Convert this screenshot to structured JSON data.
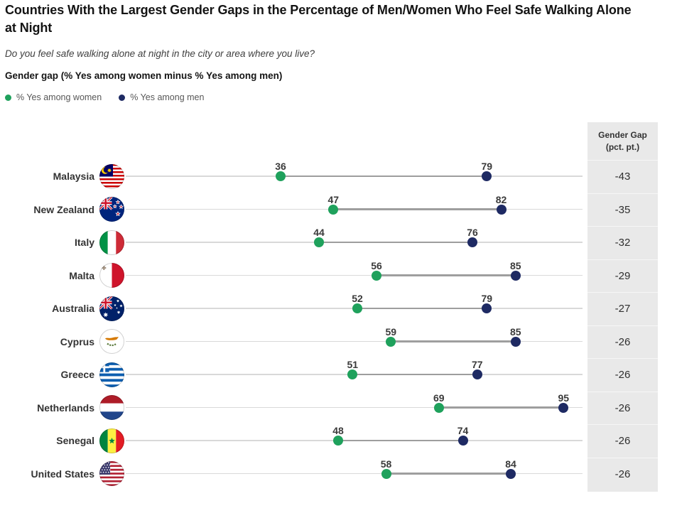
{
  "header": {
    "title": "Countries With the Largest Gender Gaps in the Percentage of Men/Women Who Feel Safe Walking Alone at Night",
    "question": "Do you feel safe walking alone at night in the city or area where you live?",
    "measure": "Gender gap (% Yes among women minus % Yes among men)"
  },
  "legend": {
    "women_label": "% Yes among women",
    "men_label": "% Yes among men"
  },
  "gap_column": {
    "header_line1": "Gender Gap",
    "header_line2": "(pct. pt.)"
  },
  "colors": {
    "women_dot": "#1fa15c",
    "men_dot": "#1e2a63",
    "track": "#d9d9d9",
    "connector": "#9e9e9e",
    "column_bg": "#e9e9e9"
  },
  "rows": [
    {
      "country": "Malaysia",
      "flag": "malaysia",
      "women": 36,
      "men": 79,
      "gap": -43
    },
    {
      "country": "New Zealand",
      "flag": "newzealand",
      "women": 47,
      "men": 82,
      "gap": -35
    },
    {
      "country": "Italy",
      "flag": "italy",
      "women": 44,
      "men": 76,
      "gap": -32
    },
    {
      "country": "Malta",
      "flag": "malta",
      "women": 56,
      "men": 85,
      "gap": -29
    },
    {
      "country": "Australia",
      "flag": "australia",
      "women": 52,
      "men": 79,
      "gap": -27
    },
    {
      "country": "Cyprus",
      "flag": "cyprus",
      "women": 59,
      "men": 85,
      "gap": -26
    },
    {
      "country": "Greece",
      "flag": "greece",
      "women": 51,
      "men": 77,
      "gap": -26
    },
    {
      "country": "Netherlands",
      "flag": "netherlands",
      "women": 69,
      "men": 95,
      "gap": -26
    },
    {
      "country": "Senegal",
      "flag": "senegal",
      "women": 48,
      "men": 74,
      "gap": -26
    },
    {
      "country": "United States",
      "flag": "unitedstates",
      "women": 58,
      "men": 84,
      "gap": -26
    }
  ],
  "chart_data": {
    "type": "scatter",
    "subtype": "dumbbell",
    "title": "Countries With the Largest Gender Gaps in the Percentage of Men/Women Who Feel Safe Walking Alone at Night",
    "subtitle": "Do you feel safe walking alone at night in the city or area where you live?",
    "measure_label": "Gender gap (% Yes among women minus % Yes among men)",
    "xlim": [
      0,
      100
    ],
    "grid": false,
    "legend_position": "top-left",
    "categories": [
      "Malaysia",
      "New Zealand",
      "Italy",
      "Malta",
      "Australia",
      "Cyprus",
      "Greece",
      "Netherlands",
      "Senegal",
      "United States"
    ],
    "series": [
      {
        "name": "% Yes among women",
        "color": "#1fa15c",
        "values": [
          36,
          47,
          44,
          56,
          52,
          59,
          51,
          69,
          48,
          58
        ]
      },
      {
        "name": "% Yes among men",
        "color": "#1e2a63",
        "values": [
          79,
          82,
          76,
          85,
          79,
          85,
          77,
          95,
          74,
          84
        ]
      }
    ],
    "gap_column": {
      "header": "Gender Gap (pct. pt.)",
      "values": [
        -43,
        -35,
        -32,
        -29,
        -27,
        -26,
        -26,
        -26,
        -26,
        -26
      ]
    }
  }
}
